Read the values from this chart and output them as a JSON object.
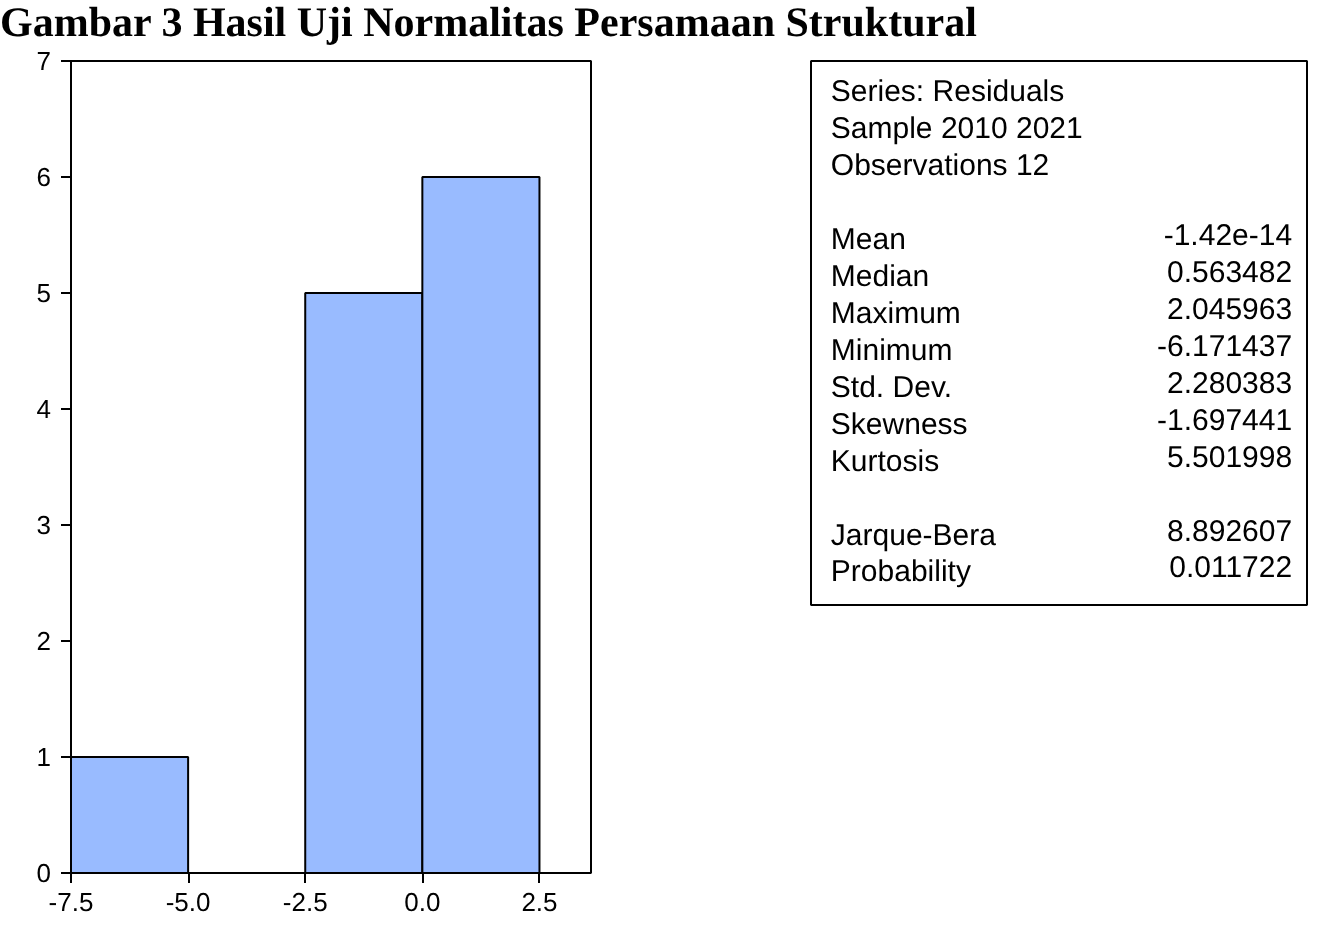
{
  "chart_data": {
    "type": "histogram",
    "title": "Gambar 3 Hasil Uji Normalitas Persamaan Struktural",
    "bins": [
      -7.5,
      -5.0,
      -2.5,
      0.0,
      2.5
    ],
    "values": [
      1,
      0,
      5,
      6
    ],
    "color": "#99bbff",
    "xlim": [
      -7.5,
      3.6
    ],
    "xticks": [
      {
        "value": -7.5,
        "label": "-7.5"
      },
      {
        "value": -5.0,
        "label": "-5.0"
      },
      {
        "value": -2.5,
        "label": "-2.5"
      },
      {
        "value": 0.0,
        "label": "0.0"
      },
      {
        "value": 2.5,
        "label": "2.5"
      }
    ],
    "ylim": [
      0,
      7
    ],
    "yticks": [
      0,
      1,
      2,
      3,
      4,
      5,
      6,
      7
    ],
    "grid": false,
    "annotations": [
      "Series: Residuals",
      "Sample 2010 2021",
      "Observations 12",
      "Mean\t-1.42e-14",
      "Median\t0.563482",
      "Maximum\t2.045963",
      "Minimum\t-6.171437",
      "Std. Dev.\t2.280383",
      "Skewness\t-1.697441",
      "Kurtosis\t5.501998",
      "Jarque-Bera\t8.892607",
      "Probability\t0.011722"
    ]
  }
}
